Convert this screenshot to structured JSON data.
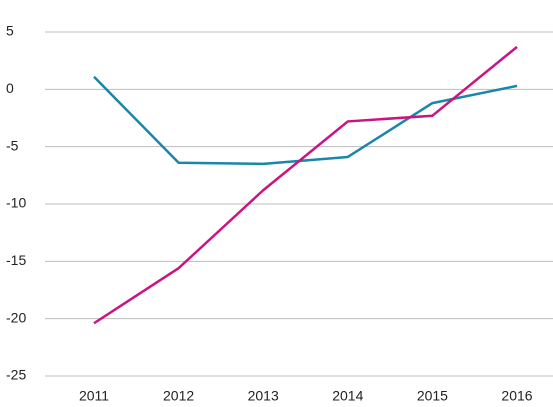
{
  "chart_data": {
    "type": "line",
    "categories": [
      "2011",
      "2012",
      "2013",
      "2014",
      "2015",
      "2016"
    ],
    "series": [
      {
        "color": "#1a86a8",
        "values": [
          1.1,
          -6.4,
          -6.5,
          -5.9,
          -1.2,
          0.3
        ]
      },
      {
        "color": "#cc1480",
        "values": [
          -20.4,
          -15.6,
          -8.8,
          -2.8,
          -2.3,
          3.7
        ]
      }
    ],
    "ylim": [
      -25,
      5
    ],
    "yticks": [
      5,
      0,
      -5,
      -10,
      -15,
      -20,
      -25
    ],
    "grid": true
  }
}
